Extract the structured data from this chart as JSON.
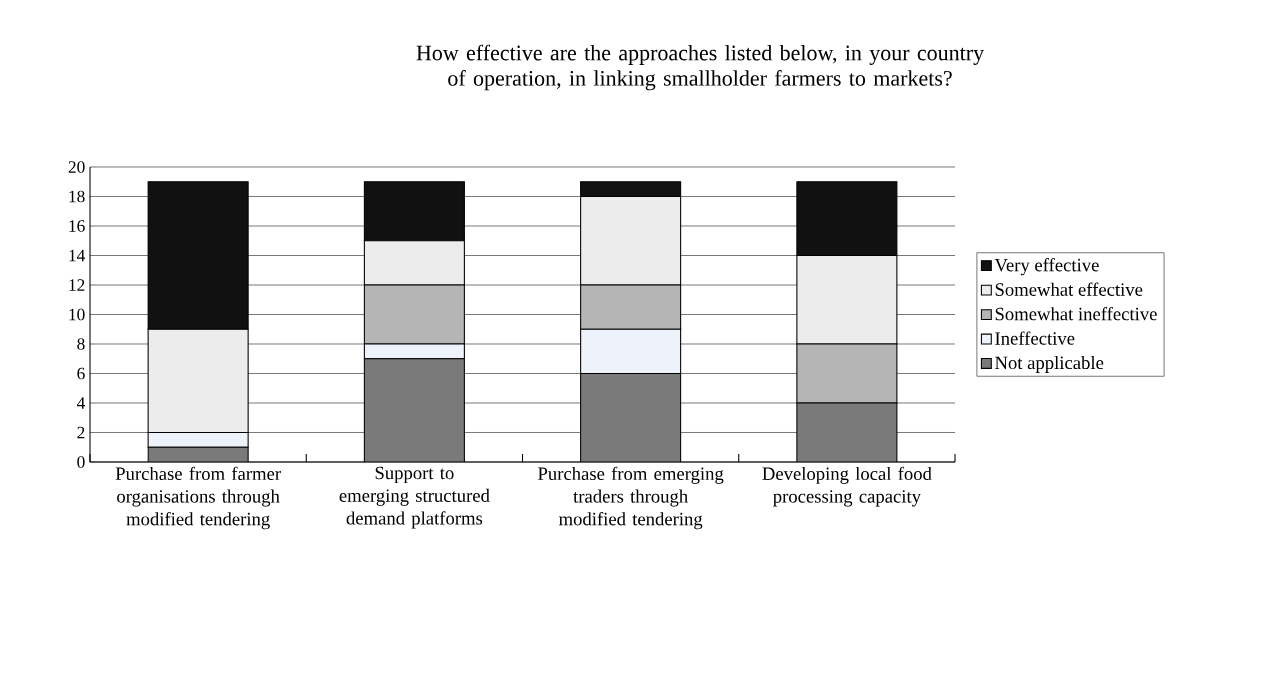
{
  "chart_data": {
    "type": "bar",
    "stacked": true,
    "title": "How effective are the approaches listed below, in your country of operation, in linking  smallholder farmers to markets?",
    "categories": [
      "Purchase from farmer organisations through modified tendering",
      "Support to emerging structured demand platforms",
      "Purchase from emerging traders through modified tendering",
      "Developing local food processing capacity"
    ],
    "series": [
      {
        "name": "Not applicable",
        "color": "#7a7a7a",
        "values": [
          1,
          7,
          6,
          4
        ]
      },
      {
        "name": "Ineffective",
        "color": "#eef2fa",
        "values": [
          1,
          1,
          3,
          0
        ]
      },
      {
        "name": "Somewhat ineffective",
        "color": "#b5b5b5",
        "values": [
          0,
          4,
          3,
          4
        ]
      },
      {
        "name": "Somewhat effective",
        "color": "#ececec",
        "values": [
          7,
          3,
          6,
          6
        ]
      },
      {
        "name": "Very effective",
        "color": "#111111",
        "values": [
          10,
          4,
          1,
          5
        ]
      }
    ],
    "ylim": [
      0,
      20
    ],
    "yticks": [
      0,
      2,
      4,
      6,
      8,
      10,
      12,
      14,
      16,
      18,
      20
    ],
    "grid": "y",
    "legend": "right"
  }
}
